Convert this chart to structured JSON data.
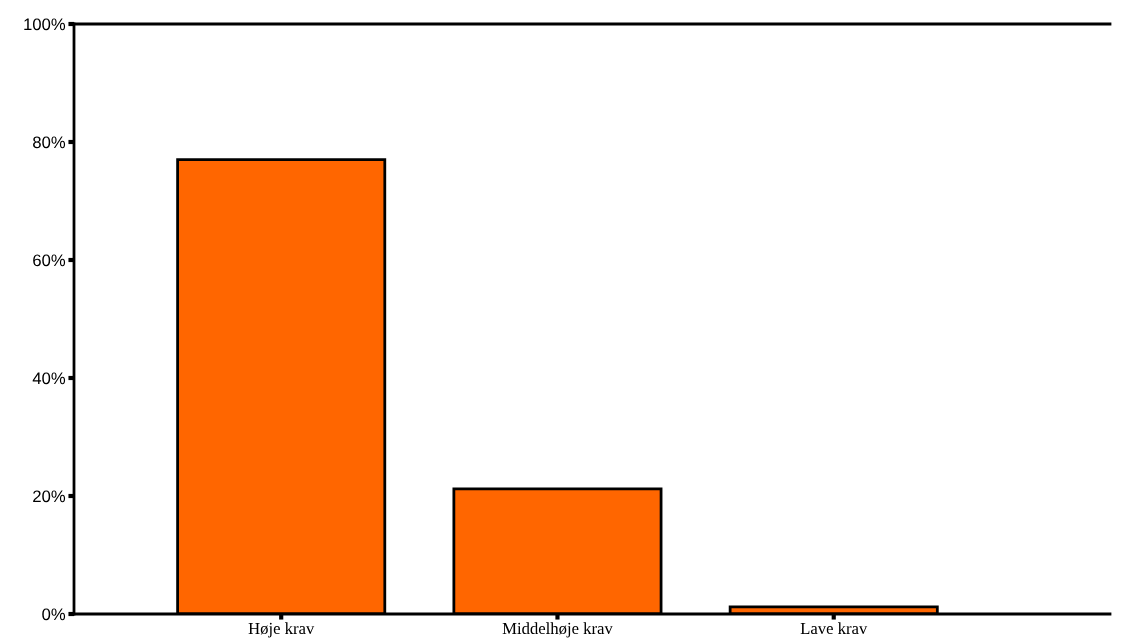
{
  "chart_data": {
    "type": "bar",
    "categories": [
      "Høje krav",
      "Middelhøje krav",
      "Lave krav"
    ],
    "values": [
      77,
      21.2,
      1.2
    ],
    "color": "#ff6600",
    "ylim": [
      0,
      100
    ],
    "yticks": [
      {
        "value": 0,
        "label": "0%"
      },
      {
        "value": 20,
        "label": "20%"
      },
      {
        "value": 40,
        "label": "40%"
      },
      {
        "value": 60,
        "label": "60%"
      },
      {
        "value": 80,
        "label": "80%"
      },
      {
        "value": 100,
        "label": "100%"
      }
    ],
    "grid": false,
    "legend": false
  }
}
